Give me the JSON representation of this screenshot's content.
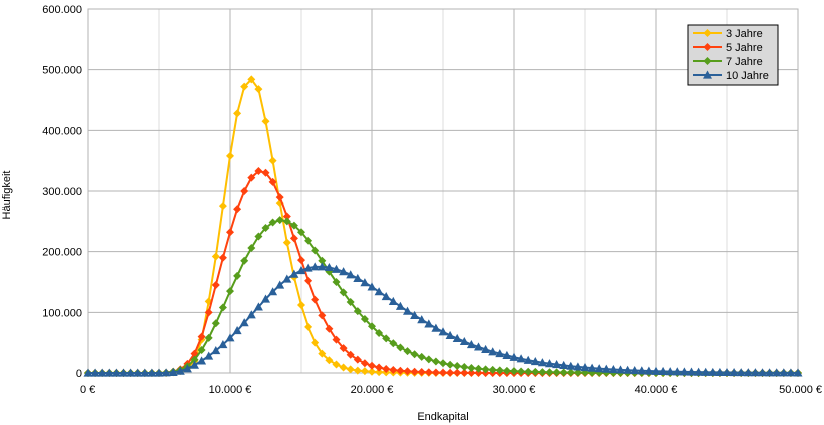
{
  "chart_data": {
    "type": "line",
    "title": "",
    "xlabel": "Endkapital",
    "ylabel": "Häufigkeit",
    "xlim": [
      0,
      50000
    ],
    "ylim": [
      0,
      600000
    ],
    "x_ticks": [
      0,
      10000,
      20000,
      30000,
      40000,
      50000
    ],
    "x_tick_labels": [
      "0 €",
      "10.000 €",
      "20.000 €",
      "30.000 €",
      "40.000 €",
      "50.000 €"
    ],
    "y_ticks": [
      0,
      100000,
      200000,
      300000,
      400000,
      500000,
      600000
    ],
    "y_tick_labels": [
      "0",
      "100.000",
      "200.000",
      "300.000",
      "400.000",
      "500.000",
      "600.000"
    ],
    "grid": true,
    "legend_position": "top-right",
    "x": [
      0,
      500,
      1000,
      1500,
      2000,
      2500,
      3000,
      3500,
      4000,
      4500,
      5000,
      5500,
      6000,
      6500,
      7000,
      7500,
      8000,
      8500,
      9000,
      9500,
      10000,
      10500,
      11000,
      11500,
      12000,
      12500,
      13000,
      13500,
      14000,
      14500,
      15000,
      15500,
      16000,
      16500,
      17000,
      17500,
      18000,
      18500,
      19000,
      19500,
      20000,
      20500,
      21000,
      21500,
      22000,
      22500,
      23000,
      23500,
      24000,
      24500,
      25000,
      25500,
      26000,
      26500,
      27000,
      27500,
      28000,
      28500,
      29000,
      29500,
      30000,
      30500,
      31000,
      31500,
      32000,
      32500,
      33000,
      33500,
      34000,
      34500,
      35000,
      35500,
      36000,
      36500,
      37000,
      37500,
      38000,
      38500,
      39000,
      39500,
      40000,
      40500,
      41000,
      41500,
      42000,
      42500,
      43000,
      43500,
      44000,
      44500,
      45000,
      45500,
      46000,
      46500,
      47000,
      47500,
      48000,
      48500,
      49000,
      49500,
      50000
    ],
    "series": [
      {
        "name": "3 Jahre",
        "color": "#ffbf00",
        "marker": "diamond",
        "values": [
          0,
          0,
          0,
          0,
          0,
          0,
          0,
          0,
          0,
          0,
          0,
          0,
          1000,
          3000,
          8000,
          20000,
          55000,
          118000,
          192000,
          275000,
          358000,
          428000,
          472000,
          484000,
          468000,
          415000,
          350000,
          280000,
          215000,
          158000,
          112000,
          76000,
          50000,
          32000,
          21000,
          14000,
          9000,
          6000,
          4000,
          3000,
          2000,
          1500,
          1000,
          800,
          600,
          400,
          300,
          200,
          150,
          100,
          80,
          60,
          40,
          30,
          20,
          10,
          0,
          0,
          0,
          0,
          0,
          0,
          0,
          0,
          0,
          0,
          0,
          0,
          0,
          0,
          0,
          0,
          0,
          0,
          0,
          0,
          0,
          0,
          0,
          0,
          0,
          0,
          0,
          0,
          0,
          0,
          0,
          0,
          0,
          0,
          0,
          0,
          0,
          0,
          0,
          0,
          0,
          0,
          0,
          0,
          0
        ]
      },
      {
        "name": "5 Jahre",
        "color": "#ff420e",
        "marker": "diamond",
        "values": [
          0,
          0,
          0,
          0,
          0,
          0,
          0,
          0,
          0,
          0,
          0,
          500,
          2000,
          6000,
          15000,
          32000,
          60000,
          100000,
          145000,
          190000,
          232000,
          270000,
          300000,
          322000,
          333000,
          330000,
          315000,
          290000,
          258000,
          222000,
          186000,
          152000,
          121000,
          95000,
          73000,
          55000,
          41000,
          30000,
          22000,
          16000,
          12000,
          9000,
          6600,
          5000,
          3700,
          2800,
          2100,
          1600,
          1200,
          900,
          700,
          500,
          400,
          300,
          200,
          150,
          100,
          80,
          60,
          40,
          30,
          20,
          10,
          0,
          0,
          0,
          0,
          0,
          0,
          0,
          0,
          0,
          0,
          0,
          0,
          0,
          0,
          0,
          0,
          0,
          0,
          0,
          0,
          0,
          0,
          0,
          0,
          0,
          0,
          0,
          0,
          0,
          0,
          0,
          0,
          0,
          0,
          0,
          0,
          0,
          0
        ]
      },
      {
        "name": "7 Jahre",
        "color": "#579d1c",
        "marker": "diamond",
        "values": [
          0,
          0,
          0,
          0,
          0,
          0,
          0,
          0,
          0,
          0,
          0,
          500,
          2000,
          5000,
          11000,
          22000,
          38000,
          58000,
          82000,
          108000,
          135000,
          160000,
          185000,
          206000,
          225000,
          239000,
          248000,
          252000,
          250000,
          243000,
          232000,
          218000,
          202000,
          185000,
          167000,
          150000,
          133000,
          117000,
          102000,
          89000,
          77000,
          66000,
          57000,
          49000,
          42000,
          36000,
          31000,
          26500,
          22500,
          19000,
          16000,
          13500,
          11500,
          9800,
          8300,
          7000,
          6000,
          5100,
          4300,
          3600,
          3000,
          2500,
          2100,
          1800,
          1500,
          1250,
          1050,
          880,
          740,
          620,
          520,
          440,
          370,
          310,
          260,
          220,
          180,
          150,
          130,
          110,
          90,
          75,
          60,
          50,
          40,
          30,
          20,
          10,
          0,
          0,
          0,
          0,
          0,
          0,
          0,
          0,
          0,
          0,
          0,
          0,
          0
        ]
      },
      {
        "name": "10 Jahre",
        "color": "#2a6099",
        "marker": "triangle",
        "values": [
          0,
          0,
          0,
          0,
          0,
          0,
          0,
          0,
          0,
          0,
          0,
          300,
          1000,
          3000,
          7000,
          13000,
          20000,
          28000,
          37000,
          47000,
          58000,
          70000,
          83000,
          96000,
          109000,
          122000,
          134000,
          145000,
          155000,
          163000,
          169000,
          173000,
          175000,
          175000,
          174000,
          171000,
          167000,
          162000,
          156000,
          149000,
          142000,
          134000,
          126000,
          118000,
          110000,
          102000,
          95000,
          88000,
          81000,
          74000,
          68000,
          62000,
          57000,
          52000,
          47000,
          43000,
          39000,
          35000,
          32000,
          29000,
          26000,
          23500,
          21000,
          19000,
          17000,
          15500,
          14000,
          12500,
          11200,
          10000,
          9000,
          8000,
          7200,
          6400,
          5700,
          5100,
          4600,
          4100,
          3700,
          3300,
          2900,
          2600,
          2300,
          2000,
          1800,
          1600,
          1400,
          1250,
          1100,
          1000,
          900,
          800,
          700,
          620,
          550,
          490,
          430,
          380,
          340,
          300,
          260
        ]
      }
    ]
  }
}
